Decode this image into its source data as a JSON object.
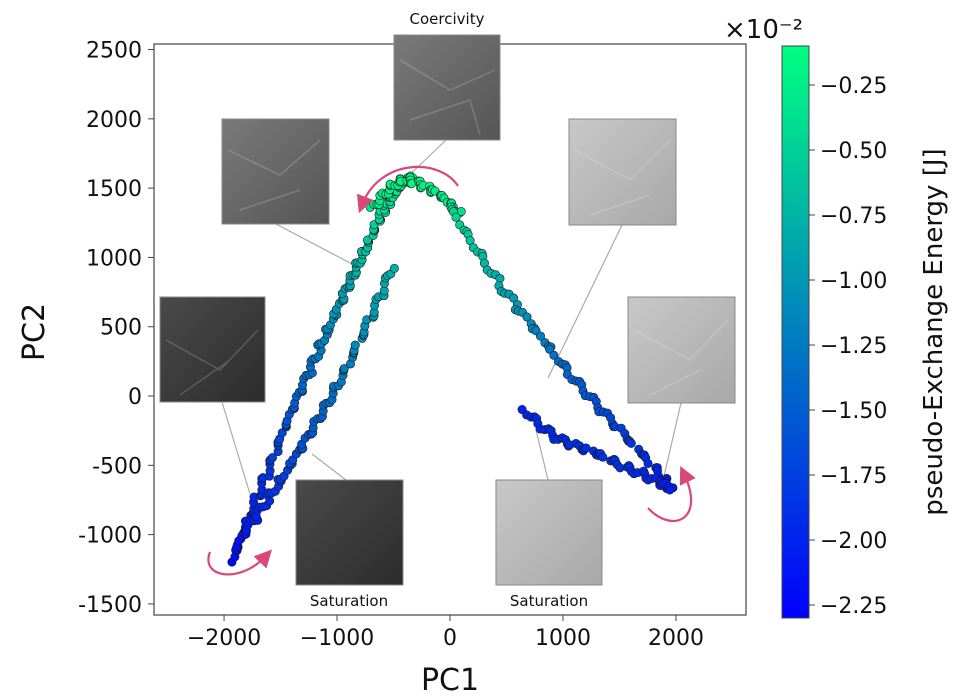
{
  "chart_data": {
    "type": "scatter",
    "xlabel": "PC1",
    "ylabel": "PC2",
    "xlim": [
      -2620,
      2620
    ],
    "ylim": [
      -1580,
      2540
    ],
    "xticks": [
      "−2000",
      "−1000",
      "0",
      "1000",
      "2000"
    ],
    "yticks": [
      "2500",
      "2000",
      "1500",
      "1000",
      "500",
      "0",
      "-500",
      "-1000",
      "-1500"
    ],
    "colorbar": {
      "label": "pseudo-Exchange Energy [J]",
      "multiplier": "×10⁻²",
      "range": [
        -2.3,
        -0.1
      ],
      "ticks": [
        "−0.25",
        "−0.50",
        "−0.75",
        "−1.00",
        "−1.25",
        "−1.50",
        "−1.75",
        "−2.00",
        "−2.25"
      ],
      "colormap": [
        "#0000ff",
        "#00ff80"
      ]
    },
    "inset_labels": {
      "top": "Coercivity",
      "bottom_left": "Saturation",
      "bottom_right": "Saturation"
    },
    "series": [
      {
        "branch": "left-upper",
        "x": [
          -1930,
          -1860,
          -1780,
          -1700,
          -1620,
          -1540,
          -1460,
          -1380,
          -1300,
          -1220,
          -1150,
          -1080,
          -1010,
          -940,
          -880,
          -820,
          -760,
          -700,
          -640,
          -590,
          -540,
          -490,
          -440,
          -390,
          -340
        ],
        "y": [
          -1180,
          -1030,
          -880,
          -720,
          -560,
          -400,
          -240,
          -90,
          60,
          210,
          350,
          480,
          610,
          740,
          850,
          960,
          1060,
          1160,
          1250,
          1330,
          1400,
          1460,
          1510,
          1550,
          1580
        ],
        "energy": [
          -2.25,
          -2.15,
          -2.05,
          -1.95,
          -1.85,
          -1.75,
          -1.65,
          -1.55,
          -1.45,
          -1.35,
          -1.25,
          -1.15,
          -1.05,
          -0.95,
          -0.85,
          -0.75,
          -0.65,
          -0.55,
          -0.5,
          -0.45,
          -0.4,
          -0.35,
          -0.3,
          -0.25,
          -0.2
        ]
      },
      {
        "branch": "left-lower",
        "x": [
          -1900,
          -1800,
          -1700,
          -1600,
          -1500,
          -1400,
          -1300,
          -1200,
          -1100,
          -1000,
          -900,
          -800,
          -700,
          -600,
          -500
        ],
        "y": [
          -1120,
          -980,
          -860,
          -730,
          -610,
          -470,
          -340,
          -200,
          -60,
          90,
          240,
          400,
          560,
          740,
          930
        ],
        "energy": [
          -2.2,
          -2.1,
          -2.0,
          -1.9,
          -1.8,
          -1.7,
          -1.6,
          -1.5,
          -1.4,
          -1.3,
          -1.2,
          -1.1,
          -1.0,
          -0.9,
          -0.8
        ]
      },
      {
        "branch": "peak",
        "x": [
          -700,
          -600,
          -500,
          -400,
          -300,
          -200,
          -100,
          0,
          100
        ],
        "y": [
          1350,
          1450,
          1530,
          1570,
          1540,
          1500,
          1460,
          1400,
          1320
        ],
        "energy": [
          -0.3,
          -0.25,
          -0.2,
          -0.15,
          -0.15,
          -0.2,
          -0.25,
          -0.3,
          -0.35
        ]
      },
      {
        "branch": "right",
        "x": [
          0,
          150,
          300,
          450,
          600,
          750,
          900,
          1050,
          1200,
          1350,
          1500,
          1650,
          1800,
          1900,
          1960
        ],
        "y": [
          1380,
          1180,
          990,
          800,
          640,
          480,
          320,
          160,
          20,
          -120,
          -250,
          -380,
          -500,
          -600,
          -680
        ],
        "energy": [
          -0.4,
          -0.55,
          -0.7,
          -0.85,
          -1.0,
          -1.15,
          -1.3,
          -1.45,
          -1.55,
          -1.65,
          -1.75,
          -1.85,
          -1.95,
          -2.05,
          -2.1
        ]
      },
      {
        "branch": "right-lower",
        "x": [
          650,
          800,
          950,
          1100,
          1250,
          1400,
          1550,
          1700,
          1850,
          1950
        ],
        "y": [
          -100,
          -220,
          -310,
          -360,
          -400,
          -450,
          -510,
          -560,
          -620,
          -660
        ],
        "energy": [
          -2.0,
          -1.95,
          -1.95,
          -1.9,
          -1.9,
          -1.85,
          -1.9,
          -1.95,
          -2.0,
          -2.05
        ]
      }
    ]
  }
}
